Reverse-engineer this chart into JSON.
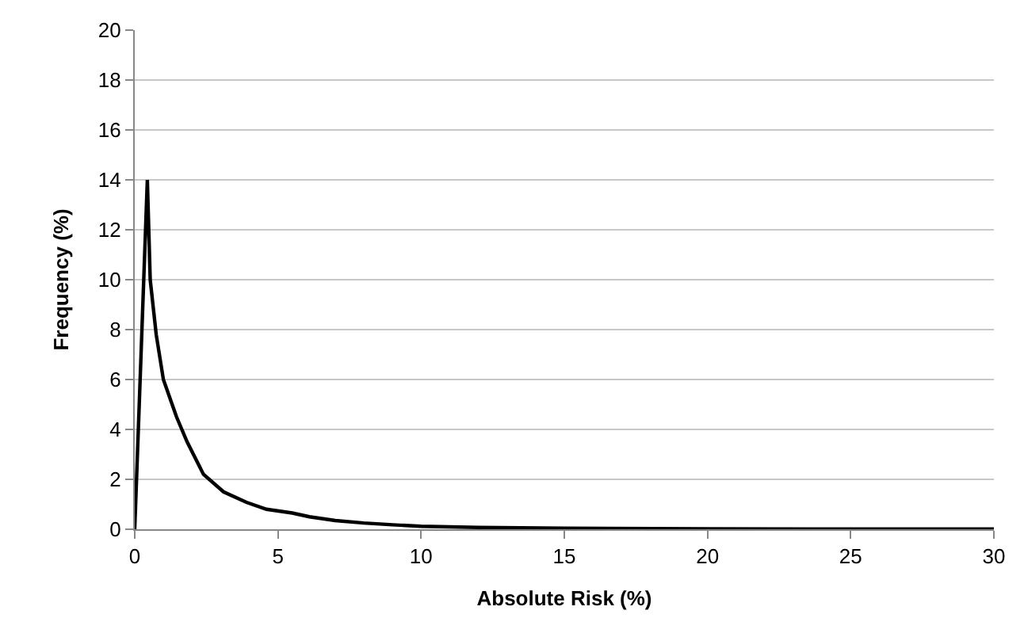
{
  "chart_data": {
    "type": "line",
    "xlabel": "Absolute Risk (%)",
    "ylabel": "Frequency (%)",
    "x": [
      0,
      0.44,
      0.54,
      0.75,
      1.0,
      1.46,
      1.83,
      2.4,
      3.1,
      3.9,
      4.6,
      5.5,
      6.1,
      7,
      8,
      9,
      10,
      12,
      15,
      20,
      25,
      30
    ],
    "series": [
      {
        "color": "#000000",
        "values": [
          0,
          14,
          10.0,
          7.8,
          6.0,
          4.5,
          3.5,
          2.2,
          1.5,
          1.08,
          0.8,
          0.65,
          0.5,
          0.35,
          0.25,
          0.18,
          0.12,
          0.07,
          0.04,
          0.02,
          0.01,
          0.01
        ]
      }
    ],
    "xlim": [
      0,
      30
    ],
    "xticks": [
      0,
      5,
      10,
      15,
      20,
      25,
      30
    ],
    "ylim": [
      0,
      20
    ],
    "yticks": [
      0,
      2,
      4,
      6,
      8,
      10,
      12,
      14,
      16,
      18,
      20
    ],
    "grid": "y",
    "marker": "none",
    "line_style": "solid"
  }
}
